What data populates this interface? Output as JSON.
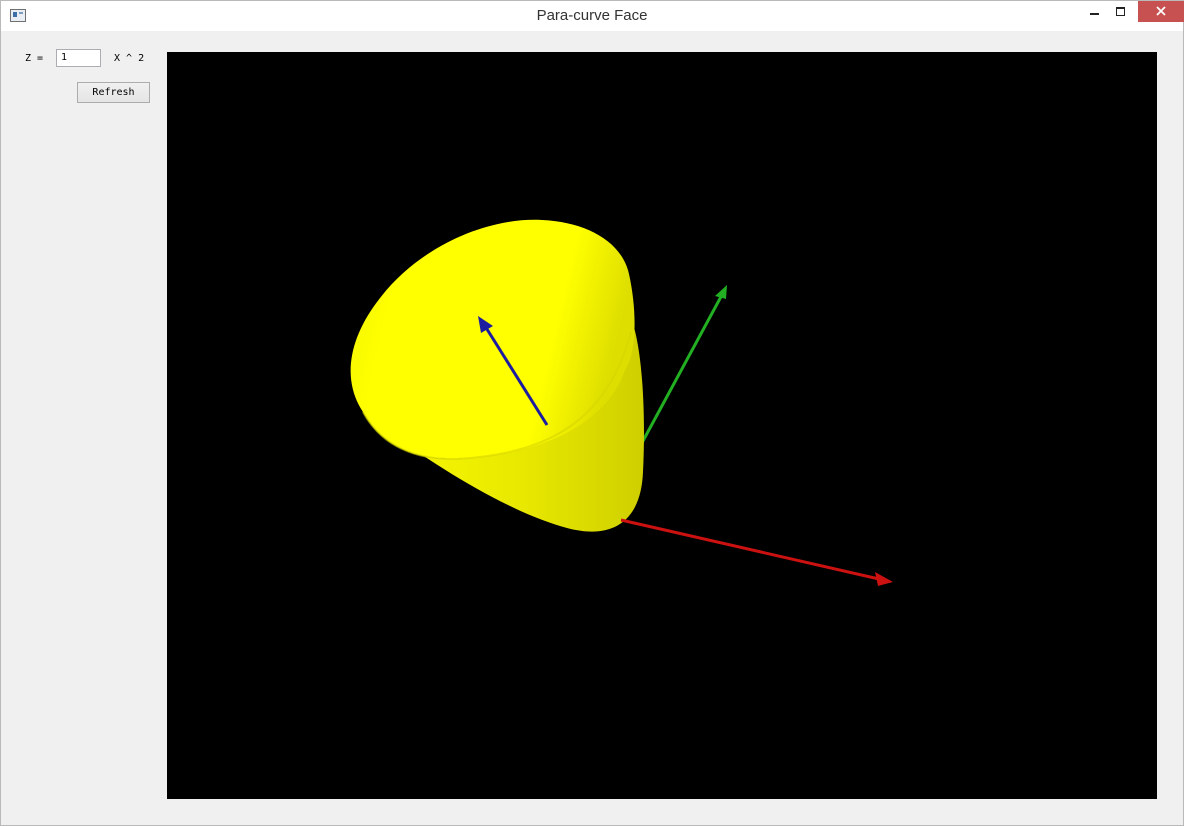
{
  "window": {
    "title": "Para-curve Face"
  },
  "controls": {
    "z_label": "Z =",
    "z_value": "1",
    "x_label": "X ^ 2",
    "refresh_label": "Refresh"
  },
  "scene": {
    "background": "#000000",
    "surface_color": "#ffff00",
    "axis_colors": {
      "x": "#cc1111",
      "y": "#22b022",
      "z": "#1c1ca0"
    }
  }
}
